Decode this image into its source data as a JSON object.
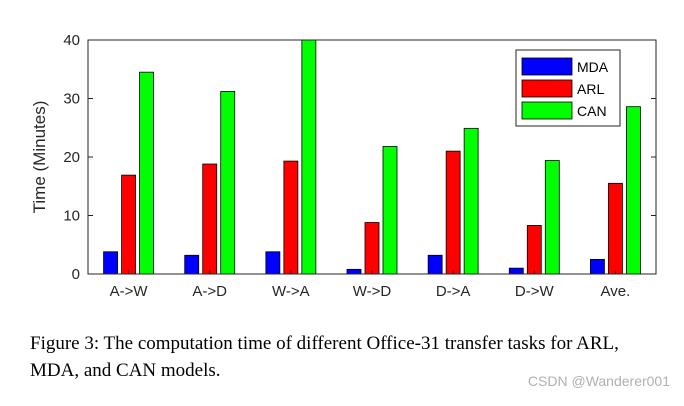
{
  "chart_data": {
    "type": "bar",
    "ylabel": "Time (Minutes)",
    "ylim": [
      0,
      40
    ],
    "yticks": [
      "0",
      "10",
      "20",
      "30",
      "40"
    ],
    "categories": [
      "A->W",
      "A->D",
      "W->A",
      "W->D",
      "D->A",
      "D->W",
      "Ave."
    ],
    "series": [
      {
        "name": "MDA",
        "color": "#0000ff",
        "values": [
          3.8,
          3.2,
          3.8,
          0.8,
          3.2,
          1.0,
          2.5
        ]
      },
      {
        "name": "ARL",
        "color": "#ff0000",
        "values": [
          16.9,
          18.8,
          19.3,
          8.8,
          21.0,
          8.3,
          15.5
        ]
      },
      {
        "name": "CAN",
        "color": "#00ff00",
        "values": [
          34.5,
          31.2,
          40.0,
          21.8,
          24.9,
          19.4,
          28.6
        ]
      }
    ],
    "legend_position": "top-right",
    "grid": false
  },
  "caption": "Figure 3: The computation time of different Office-31 transfer tasks for ARL, MDA, and CAN models.",
  "watermark": "CSDN @Wanderer001"
}
